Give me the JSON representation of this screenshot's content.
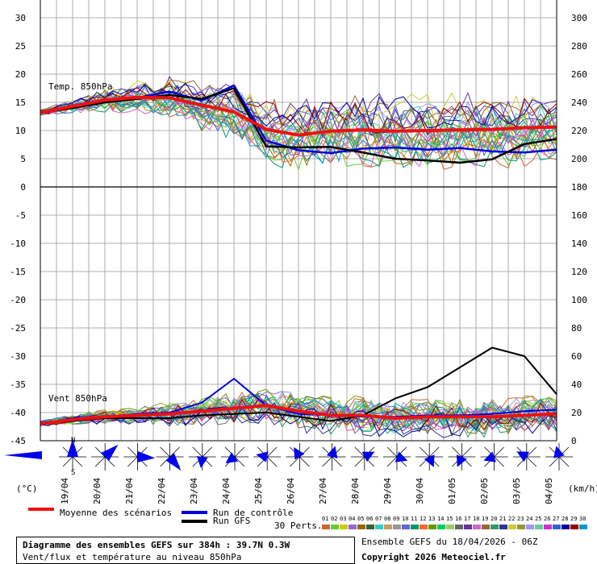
{
  "chart_data": {
    "type": "line",
    "dates": [
      "19/04",
      "20/04",
      "21/04",
      "22/04",
      "23/04",
      "24/04",
      "25/04",
      "26/04",
      "27/04",
      "28/04",
      "29/04",
      "30/04",
      "01/05",
      "02/05",
      "03/05",
      "04/05"
    ],
    "left_ticks": [
      "30",
      "25",
      "20",
      "15",
      "10",
      "5",
      "0",
      "-5",
      "-10",
      "-15",
      "-20",
      "-25",
      "-30",
      "-35",
      "-40",
      "-45"
    ],
    "right_ticks": [
      "300",
      "280",
      "260",
      "240",
      "220",
      "200",
      "180",
      "160",
      "140",
      "120",
      "100",
      "80",
      "60",
      "40",
      "20",
      "0"
    ],
    "left_unit": "(°C)",
    "right_unit": "(km/h)",
    "temp_label": "Temp. 850hPa",
    "wind_label": "Vent 850hPa",
    "temperature": {
      "name": "Moyenne des scénarios",
      "x_hours": [
        0,
        24,
        48,
        72,
        96,
        120,
        144,
        168,
        192,
        216,
        240,
        264,
        288,
        312,
        336,
        360,
        384
      ],
      "mean": [
        13.2,
        14.3,
        15.4,
        15.9,
        15.8,
        14.5,
        13.3,
        10.2,
        9.2,
        9.9,
        10.1,
        9.9,
        10.0,
        10.1,
        10.2,
        10.5,
        10.6
      ],
      "gfs": [
        13.2,
        14.0,
        15.0,
        15.6,
        16.3,
        15.6,
        17.5,
        7.2,
        7.0,
        7.1,
        6.1,
        5.0,
        4.7,
        4.3,
        4.9,
        7.6,
        8.5
      ],
      "control": [
        13.2,
        14.1,
        15.2,
        15.8,
        16.9,
        15.3,
        18.0,
        8.2,
        6.5,
        6.0,
        6.8,
        7.0,
        6.6,
        6.9,
        6.3,
        6.1,
        6.6
      ]
    },
    "wind": {
      "x_hours": [
        0,
        24,
        48,
        72,
        96,
        120,
        144,
        168,
        192,
        216,
        240,
        264,
        288,
        312,
        336,
        360,
        384
      ],
      "mean_kmh": [
        12,
        15,
        17,
        18,
        19,
        21,
        23,
        25,
        21,
        18,
        18,
        16,
        17,
        17,
        17,
        18,
        19
      ],
      "gfs_kmh": [
        12,
        14,
        16,
        16,
        16,
        18,
        19,
        20,
        17,
        14,
        18,
        30,
        38,
        52,
        66,
        60,
        33
      ],
      "control_kmh": [
        12,
        16,
        17,
        19,
        20,
        27,
        44,
        25,
        19,
        18,
        17,
        17,
        18,
        18,
        19,
        21,
        22
      ]
    },
    "direction_markers": {
      "N": "N",
      "S": "S"
    }
  },
  "legend": {
    "mean": "Moyenne des scénarios",
    "control": "Run de contrôle",
    "gfs": "Run GFS",
    "perts": "30 Perts.",
    "numbers": [
      "01",
      "02",
      "03",
      "04",
      "05",
      "06",
      "07",
      "08",
      "09",
      "10",
      "11",
      "12",
      "13",
      "14",
      "15",
      "16",
      "17",
      "18",
      "19",
      "20",
      "21",
      "22",
      "23",
      "24",
      "25",
      "26",
      "27",
      "28",
      "29",
      "30"
    ],
    "colors": [
      "#cc6633",
      "#66cc33",
      "#cccc00",
      "#9966cc",
      "#996600",
      "#336633",
      "#33cccc",
      "#cc9966",
      "#999999",
      "#6666cc",
      "#009966",
      "#ff6633",
      "#669900",
      "#00cc66",
      "#99cc66",
      "#666666",
      "#663399",
      "#cc66cc",
      "#996633",
      "#339966",
      "#333399",
      "#cccc33",
      "#999933",
      "#9999ff",
      "#66cc99",
      "#cc33cc",
      "#3366cc",
      "#000099",
      "#990000",
      "#0099cc"
    ]
  },
  "footer": {
    "title": "Diagramme des ensembles GEFS sur 384h : 39.7N 0.3W",
    "subtitle": "Vent/flux et température au niveau 850hPa",
    "ensemble_date": "Ensemble GEFS du 18/04/2026 - 06Z",
    "copyright": "Copyright 2026 Meteociel.fr"
  },
  "colors": {
    "mean": "#ee1111",
    "control": "#0000dd",
    "gfs": "#000000",
    "grid": "#999999",
    "arrows": "#0000ee"
  }
}
